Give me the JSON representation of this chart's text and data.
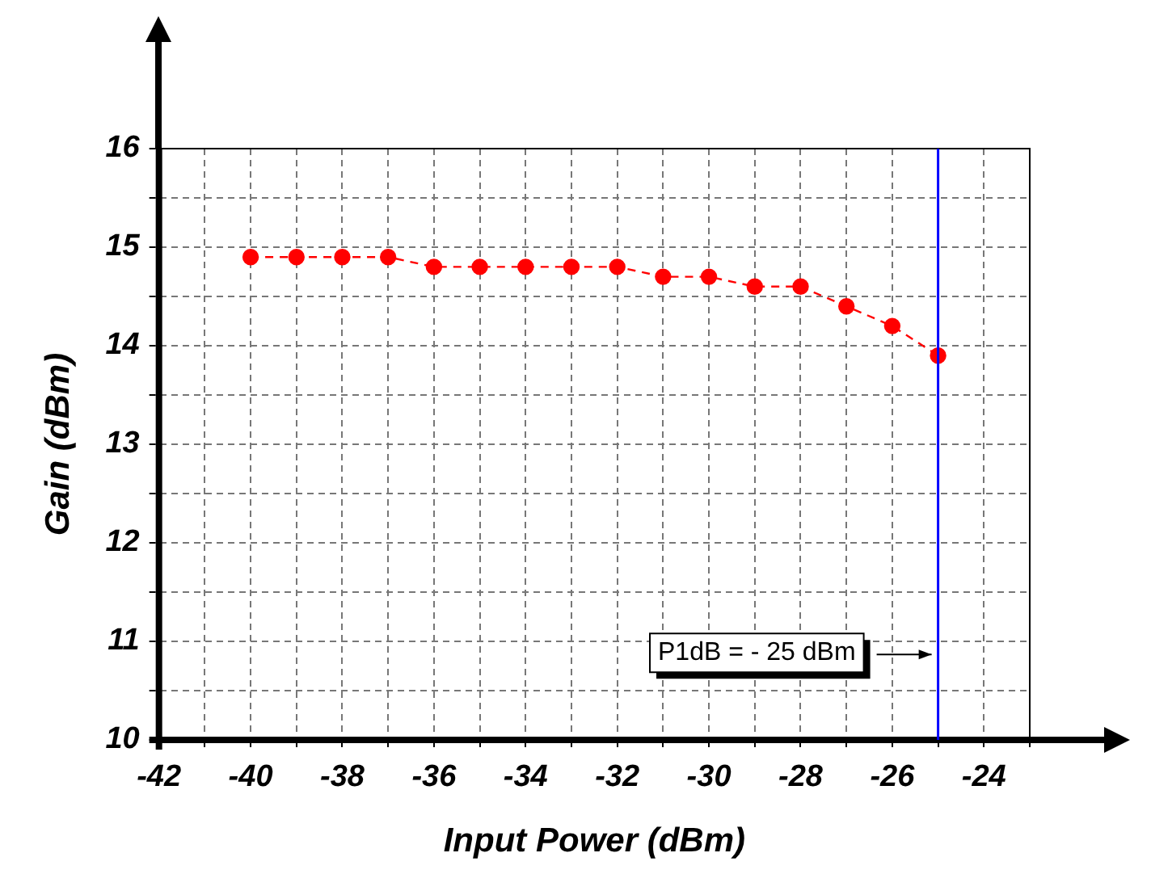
{
  "chart_data": {
    "type": "line",
    "xlabel": "Input Power (dBm)",
    "ylabel": "Gain (dBm)",
    "x": [
      -40,
      -39,
      -38,
      -37,
      -36,
      -35,
      -34,
      -33,
      -32,
      -31,
      -30,
      -29,
      -28,
      -27,
      -26,
      -25
    ],
    "series": [
      {
        "color": "#ff0000",
        "values": [
          14.9,
          14.9,
          14.9,
          14.9,
          14.8,
          14.8,
          14.8,
          14.8,
          14.8,
          14.7,
          14.7,
          14.6,
          14.6,
          14.4,
          14.2,
          13.9
        ]
      }
    ],
    "xlim": [
      -42,
      -23
    ],
    "xticks": [
      -42,
      {
        "value": -41,
        "label": null
      },
      -40,
      {
        "value": -39,
        "label": null
      },
      -38,
      {
        "value": -37,
        "label": null
      },
      -36,
      {
        "value": -35,
        "label": null
      },
      -34,
      {
        "value": -33,
        "label": null
      },
      -32,
      {
        "value": -31,
        "label": null
      },
      -30,
      {
        "value": -29,
        "label": null
      },
      -28,
      {
        "value": -27,
        "label": null
      },
      -26,
      {
        "value": -25,
        "label": null
      },
      -24,
      {
        "value": -23,
        "label": null
      }
    ],
    "ylim": [
      10,
      16
    ],
    "yticks": [
      10,
      {
        "value": 10.5,
        "label": null
      },
      11,
      {
        "value": 11.5,
        "label": null
      },
      12,
      {
        "value": 12.5,
        "label": null
      },
      13,
      {
        "value": 13.5,
        "label": null
      },
      14,
      {
        "value": 14.5,
        "label": null
      },
      15,
      {
        "value": 15.5,
        "label": null
      },
      16
    ],
    "ref_lines": [
      {
        "axis": "x",
        "value": -25,
        "color": "#0000ff"
      }
    ],
    "annotations": [
      {
        "text": "P1dB = - 25 dBm",
        "x": -25,
        "y": 10.9
      }
    ],
    "grid": true,
    "legend": false,
    "marker": "circle",
    "line_style": "dashed"
  }
}
